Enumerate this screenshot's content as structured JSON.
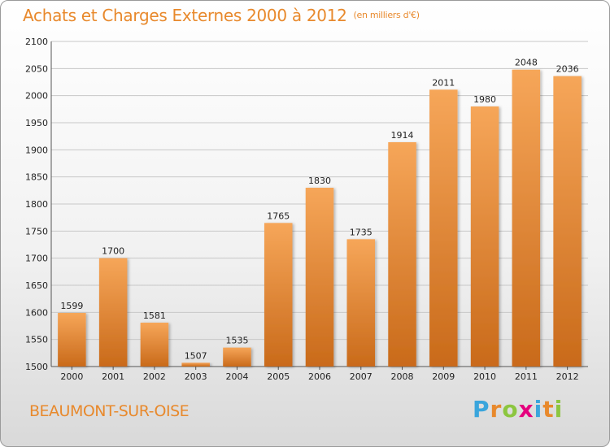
{
  "header": {
    "title": "Achats et Charges Externes 2000 à 2012",
    "subtitle": "(en milliers d'€)"
  },
  "footer": {
    "city": "BEAUMONT-SUR-OISE",
    "logo": {
      "letters": [
        "P",
        "r",
        "o",
        "x",
        "i",
        "t",
        "i"
      ],
      "colors": [
        "#3aa5dc",
        "#e8892c",
        "#8cc63f",
        "#e5007e",
        "#3aa5dc",
        "#e8892c",
        "#8cc63f"
      ]
    }
  },
  "colors": {
    "accent": "#e8892c",
    "bar_top": "#f6a659",
    "bar_bottom": "#c96a1a"
  },
  "chart_data": {
    "type": "bar",
    "title": "Achats et Charges Externes 2000 à 2012",
    "subtitle": "(en milliers d'€)",
    "categories": [
      "2000",
      "2001",
      "2002",
      "2003",
      "2004",
      "2005",
      "2006",
      "2007",
      "2008",
      "2009",
      "2010",
      "2011",
      "2012"
    ],
    "values": [
      1599,
      1700,
      1581,
      1507,
      1535,
      1765,
      1830,
      1735,
      1914,
      2011,
      1980,
      2048,
      2036
    ],
    "ylim": [
      1500,
      2100
    ],
    "yticks": [
      1500,
      1550,
      1600,
      1650,
      1700,
      1750,
      1800,
      1850,
      1900,
      1950,
      2000,
      2050,
      2100
    ],
    "grid": true,
    "xlabel": "",
    "ylabel": ""
  }
}
